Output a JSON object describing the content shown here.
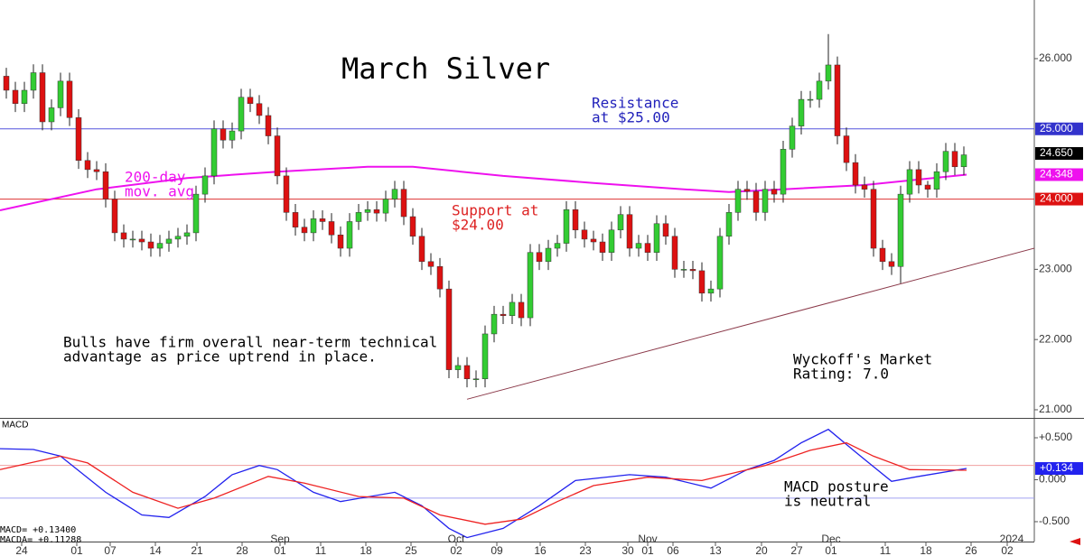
{
  "chart_data": [
    {
      "type": "candlestick",
      "title": "March Silver",
      "xlim": [
        -0.7,
        113.8
      ],
      "ylim": [
        20.884,
        26.835
      ],
      "up_color": "#33cc33",
      "down_color": "#dd1111",
      "candles": {
        "open": [
          25.75,
          25.55,
          25.36,
          25.55,
          25.8,
          25.1,
          25.3,
          25.68,
          25.16,
          24.55,
          24.42,
          24.39,
          24.0,
          23.52,
          23.43,
          23.43,
          23.39,
          23.3,
          23.37,
          23.43,
          23.47,
          23.52,
          24.07,
          24.33,
          25.0,
          24.84,
          24.97,
          25.45,
          25.36,
          25.19,
          24.9,
          24.33,
          23.81,
          23.6,
          23.52,
          23.72,
          23.68,
          23.49,
          23.3,
          23.68,
          23.81,
          23.85,
          23.8,
          24.0,
          24.14,
          23.75,
          23.47,
          23.11,
          23.04,
          22.72,
          21.57,
          21.63,
          21.44,
          21.44,
          22.08,
          22.36,
          22.34,
          22.53,
          22.31,
          23.24,
          23.11,
          23.3,
          23.37,
          23.85,
          23.56,
          23.43,
          23.39,
          23.24,
          23.56,
          23.78,
          23.3,
          23.37,
          23.24,
          23.65,
          23.47,
          23.0,
          23.0,
          22.98,
          22.66,
          22.72,
          23.47,
          23.81,
          24.14,
          24.11,
          23.81,
          24.14,
          24.07,
          24.71,
          25.04,
          25.42,
          25.42,
          25.68,
          25.91,
          24.9,
          24.52,
          24.2,
          24.14,
          23.3,
          23.11,
          23.04,
          24.07,
          24.42,
          24.2,
          24.14,
          24.39,
          24.68,
          24.46
        ],
        "high": [
          25.87,
          25.67,
          25.67,
          25.92,
          25.92,
          25.42,
          25.8,
          25.8,
          25.28,
          24.67,
          24.54,
          24.51,
          24.12,
          23.64,
          23.55,
          23.55,
          23.51,
          23.49,
          23.55,
          23.59,
          23.64,
          24.19,
          24.45,
          25.12,
          25.12,
          25.09,
          25.57,
          25.57,
          25.48,
          25.31,
          25.02,
          24.45,
          23.93,
          23.72,
          23.84,
          23.84,
          23.8,
          23.61,
          23.8,
          23.93,
          23.97,
          23.97,
          24.12,
          24.26,
          24.26,
          23.87,
          23.59,
          23.23,
          23.16,
          22.84,
          21.75,
          21.75,
          21.56,
          22.2,
          22.48,
          22.48,
          22.65,
          22.65,
          23.36,
          23.36,
          23.42,
          23.49,
          23.97,
          23.97,
          23.68,
          23.55,
          23.51,
          23.68,
          23.9,
          23.9,
          23.49,
          23.49,
          23.77,
          23.77,
          23.59,
          23.12,
          23.12,
          23.1,
          22.84,
          23.59,
          23.93,
          24.26,
          24.26,
          24.23,
          24.26,
          24.26,
          24.83,
          25.16,
          25.54,
          25.54,
          25.8,
          26.35,
          26.03,
          25.02,
          24.64,
          24.32,
          24.26,
          23.42,
          23.23,
          24.19,
          24.54,
          24.54,
          24.26,
          24.51,
          24.8,
          24.8,
          24.75
        ],
        "low": [
          25.43,
          25.24,
          25.24,
          25.43,
          24.98,
          24.98,
          25.18,
          25.04,
          24.43,
          24.3,
          24.27,
          23.88,
          23.4,
          23.31,
          23.31,
          23.27,
          23.18,
          23.18,
          23.25,
          23.31,
          23.35,
          23.4,
          23.95,
          24.21,
          24.72,
          24.72,
          24.85,
          25.24,
          25.07,
          24.78,
          24.21,
          23.69,
          23.48,
          23.4,
          23.4,
          23.56,
          23.37,
          23.18,
          23.18,
          23.56,
          23.69,
          23.68,
          23.68,
          23.88,
          23.63,
          23.35,
          22.99,
          22.92,
          22.6,
          21.45,
          21.45,
          21.32,
          21.32,
          21.32,
          21.96,
          22.22,
          22.22,
          22.19,
          22.19,
          22.99,
          22.99,
          23.18,
          23.25,
          23.44,
          23.31,
          23.27,
          23.12,
          23.12,
          23.44,
          23.18,
          23.18,
          23.12,
          23.12,
          23.35,
          22.88,
          22.88,
          22.86,
          22.54,
          22.54,
          22.6,
          23.35,
          23.69,
          23.99,
          23.69,
          23.69,
          23.95,
          23.95,
          24.59,
          24.92,
          25.3,
          25.3,
          25.56,
          24.78,
          24.4,
          24.08,
          24.02,
          23.18,
          22.99,
          22.92,
          22.8,
          23.95,
          24.08,
          24.02,
          24.02,
          24.27,
          24.34,
          24.34
        ],
        "close": [
          25.55,
          25.36,
          25.55,
          25.8,
          25.1,
          25.3,
          25.68,
          25.16,
          24.55,
          24.42,
          24.39,
          24.0,
          23.52,
          23.43,
          23.43,
          23.39,
          23.3,
          23.37,
          23.43,
          23.47,
          23.52,
          24.07,
          24.33,
          25.0,
          24.84,
          24.97,
          25.45,
          25.36,
          25.19,
          24.9,
          24.33,
          23.81,
          23.6,
          23.52,
          23.72,
          23.68,
          23.49,
          23.3,
          23.68,
          23.81,
          23.85,
          23.8,
          24.0,
          24.14,
          23.75,
          23.47,
          23.11,
          23.04,
          22.72,
          21.57,
          21.63,
          21.44,
          21.44,
          22.08,
          22.36,
          22.34,
          22.53,
          22.31,
          23.24,
          23.11,
          23.3,
          23.37,
          23.85,
          23.56,
          23.43,
          23.39,
          23.24,
          23.56,
          23.78,
          23.3,
          23.37,
          23.24,
          23.65,
          23.47,
          23.0,
          23.0,
          22.98,
          22.66,
          22.72,
          23.47,
          23.81,
          24.14,
          24.11,
          23.81,
          24.14,
          24.07,
          24.71,
          25.04,
          25.42,
          25.42,
          25.68,
          25.91,
          24.9,
          24.52,
          24.2,
          24.14,
          23.3,
          23.11,
          23.04,
          24.07,
          24.42,
          24.2,
          24.14,
          24.39,
          24.68,
          24.46,
          24.63
        ]
      },
      "ma": {
        "name": [
          "200-day",
          "mov. avg"
        ],
        "color": "#ee11ee",
        "x": [
          -0.7,
          10,
          20,
          30,
          40,
          45,
          55,
          65,
          75,
          80,
          86,
          95,
          106.3
        ],
        "values": [
          23.84,
          24.14,
          24.3,
          24.39,
          24.46,
          24.46,
          24.33,
          24.23,
          24.14,
          24.1,
          24.14,
          24.2,
          24.348
        ]
      },
      "levels": [
        {
          "value": 25,
          "color": "#5555dd"
        },
        {
          "value": 24,
          "color": "#dd3333"
        }
      ],
      "trendline": {
        "x": [
          51,
          113.8
        ],
        "values": [
          21.15,
          23.3
        ],
        "color": "#8b3a4a"
      },
      "yticks": [
        {
          "value": 26,
          "label": "26.000"
        },
        {
          "value": 23,
          "label": "23.000"
        },
        {
          "value": 22,
          "label": "22.000"
        },
        {
          "value": 21,
          "label": "21.000"
        }
      ],
      "tags": [
        {
          "value": 25,
          "label": "25.000",
          "color": "#3333cc"
        },
        {
          "value": 24.65,
          "label": "24.650",
          "color": "#000000"
        },
        {
          "value": 24.348,
          "label": "24.348",
          "color": "#ee11ee"
        },
        {
          "value": 24,
          "label": "24.000",
          "color": "#dd1111"
        }
      ],
      "annotations": [
        {
          "lines": [
            "Resistance",
            "at $25.00"
          ],
          "color": "#2222bb"
        },
        {
          "lines": [
            "Support at",
            "$24.00"
          ],
          "color": "#dd2222"
        },
        {
          "lines": [
            "Bulls have firm overall near-term technical",
            "advantage as price uptrend in place."
          ],
          "color": "#000000"
        },
        {
          "lines": [
            "Wyckoff's Market",
            "Rating: 7.0"
          ],
          "color": "#000000"
        }
      ]
    },
    {
      "type": "macd",
      "title": "MACD",
      "xlim": [
        -0.7,
        113.8
      ],
      "ylim": [
        -0.737,
        0.715
      ],
      "readouts": [
        "MACD=  +0.13400",
        "MACDA= +0.11288"
      ],
      "series": [
        {
          "color": "#2222ee",
          "x": [
            -0.7,
            3,
            6,
            11,
            15,
            18,
            22,
            25,
            28,
            30,
            34,
            37,
            43,
            46,
            49,
            51,
            55,
            59,
            63,
            69,
            73,
            78,
            82,
            85,
            88,
            91,
            94,
            98,
            101,
            106.3
          ],
          "values": [
            0.37,
            0.36,
            0.28,
            -0.15,
            -0.42,
            -0.45,
            -0.2,
            0.06,
            0.17,
            0.12,
            -0.15,
            -0.26,
            -0.15,
            -0.31,
            -0.58,
            -0.69,
            -0.58,
            -0.31,
            -0.01,
            0.06,
            0.03,
            -0.1,
            0.12,
            0.23,
            0.44,
            0.6,
            0.33,
            -0.02,
            0.04,
            0.134
          ]
        },
        {
          "color": "#ee2222",
          "x": [
            -0.7,
            6,
            9,
            14,
            19,
            23,
            29,
            33,
            39,
            44,
            48,
            53,
            57,
            61,
            65,
            71,
            77,
            84,
            89,
            93,
            96,
            100,
            106.3
          ],
          "values": [
            0.12,
            0.28,
            0.2,
            -0.15,
            -0.34,
            -0.22,
            0.04,
            -0.04,
            -0.2,
            -0.22,
            -0.42,
            -0.53,
            -0.47,
            -0.26,
            -0.07,
            0.03,
            -0.01,
            0.17,
            0.35,
            0.44,
            0.28,
            0.12,
            0.113
          ]
        }
      ],
      "levels": [
        {
          "value": 0.17,
          "color": "#f0a0a0"
        },
        {
          "value": -0.22,
          "color": "#a0a0f0"
        }
      ],
      "yticks": [
        {
          "value": 0.5,
          "label": "+0.500"
        },
        {
          "value": 0,
          "label": "0.000"
        },
        {
          "value": -0.5,
          "label": "-0.500"
        }
      ],
      "tags": [
        {
          "value": 0.134,
          "label": "+0.134",
          "color": "#2222ee"
        }
      ],
      "annotations": [
        {
          "lines": [
            "MACD posture",
            "is neutral"
          ],
          "color": "#000000"
        }
      ],
      "xticks": [
        {
          "value": 1.7,
          "label": "24"
        },
        {
          "value": 7.8,
          "label": "01"
        },
        {
          "value": 11.5,
          "label": "07"
        },
        {
          "value": 16.5,
          "label": "14"
        },
        {
          "value": 21.1,
          "label": "21"
        },
        {
          "value": 26.1,
          "label": "28"
        },
        {
          "value": 30.3,
          "label": "01"
        },
        {
          "value": 34.8,
          "label": "11"
        },
        {
          "value": 39.8,
          "label": "18"
        },
        {
          "value": 44.8,
          "label": "25"
        },
        {
          "value": 49.8,
          "label": "02"
        },
        {
          "value": 54.3,
          "label": "09"
        },
        {
          "value": 59.1,
          "label": "16"
        },
        {
          "value": 64.1,
          "label": "23"
        },
        {
          "value": 68.8,
          "label": "30"
        },
        {
          "value": 71,
          "label": "01"
        },
        {
          "value": 73.8,
          "label": "06"
        },
        {
          "value": 78.5,
          "label": "13"
        },
        {
          "value": 83.6,
          "label": "20"
        },
        {
          "value": 87.5,
          "label": "27"
        },
        {
          "value": 91.3,
          "label": "01"
        },
        {
          "value": 97.3,
          "label": "11"
        },
        {
          "value": 101.8,
          "label": "18"
        },
        {
          "value": 106.8,
          "label": "26"
        },
        {
          "value": 110.8,
          "label": "02"
        }
      ],
      "month_labels": [
        {
          "value": 30.3,
          "label": "Sep"
        },
        {
          "value": 49.8,
          "label": "Oct"
        },
        {
          "value": 71,
          "label": "Nov"
        },
        {
          "value": 91.3,
          "label": "Dec"
        },
        {
          "value": 111.3,
          "label": "2024"
        }
      ]
    }
  ]
}
